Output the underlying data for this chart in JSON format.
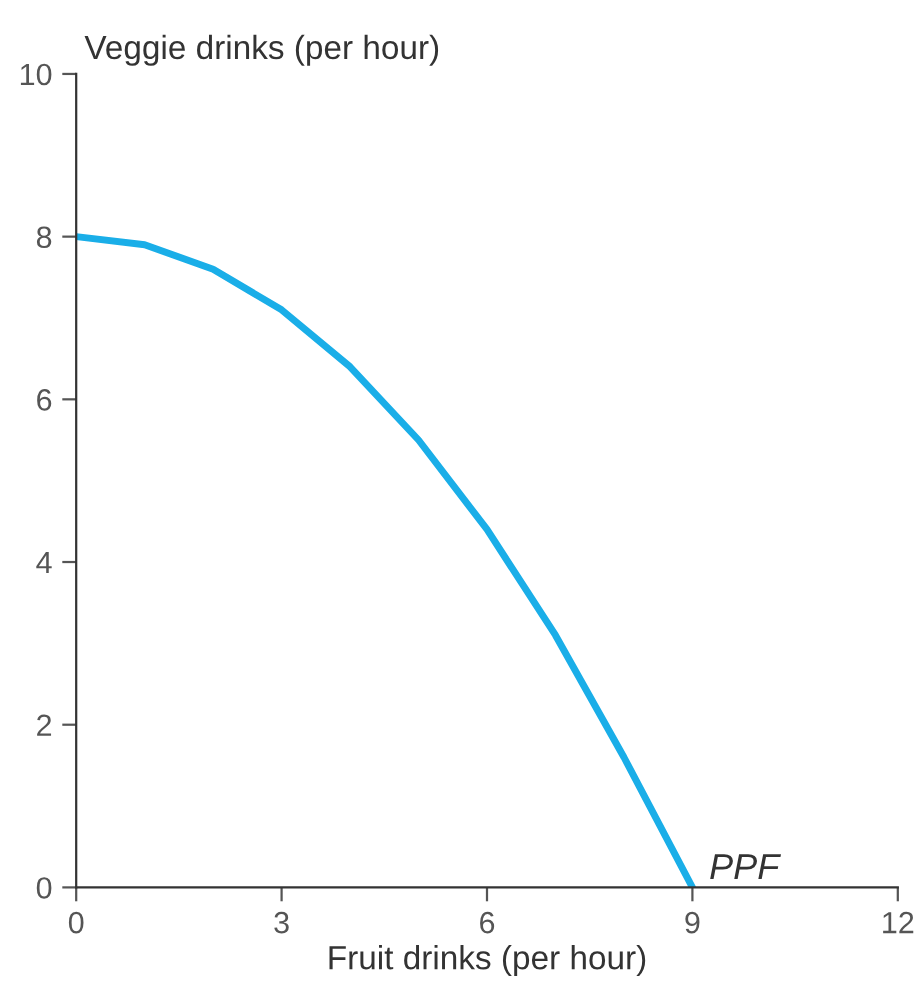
{
  "chart_data": {
    "type": "line",
    "xlabel": "Fruit drinks (per hour)",
    "ylabel": "Veggie drinks (per hour)",
    "x": [
      0,
      1,
      2,
      3,
      4,
      5,
      6,
      7,
      8,
      9
    ],
    "series": [
      {
        "color": "#1aaee8",
        "values": [
          8,
          7.9,
          7.6,
          7.1,
          6.4,
          5.5,
          4.4,
          3.1,
          1.6,
          0
        ]
      }
    ],
    "xlim": [
      0,
      12
    ],
    "xticks": [
      0,
      3,
      6,
      9,
      12
    ],
    "ylim": [
      0,
      10
    ],
    "yticks": [
      0,
      2,
      4,
      6,
      8,
      10
    ],
    "annotations": [
      {
        "text": "PPF",
        "x": 9,
        "y": 0
      }
    ],
    "grid": false,
    "legend": false,
    "marker": "none",
    "line_style": "solid"
  }
}
